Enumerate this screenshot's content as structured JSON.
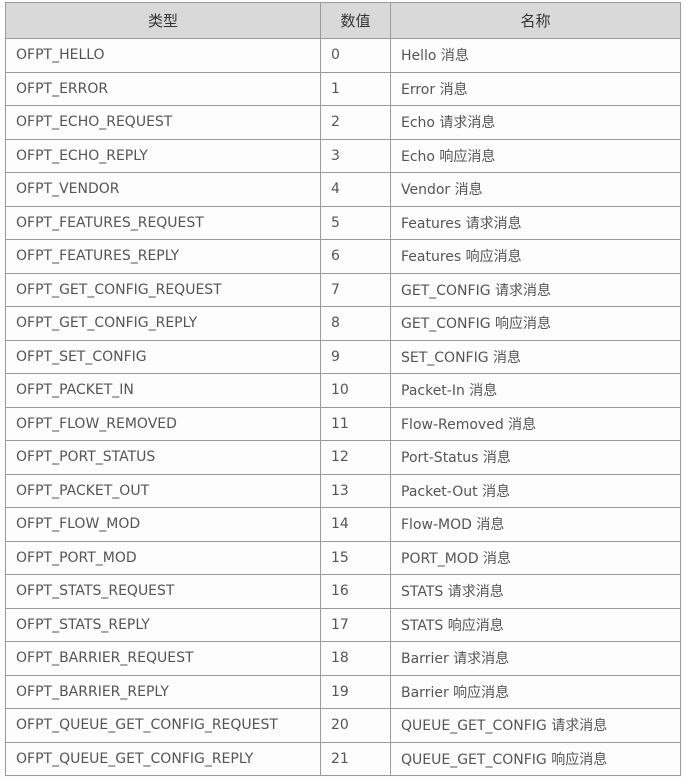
{
  "headers": [
    "类型",
    "数值",
    "名称"
  ],
  "rows": [
    [
      "OFPT_HELLO",
      "0",
      "Hello 消息"
    ],
    [
      "OFPT_ERROR",
      "1",
      "Error 消息"
    ],
    [
      "OFPT_ECHO_REQUEST",
      "2",
      "Echo 请求消息"
    ],
    [
      "OFPT_ECHO_REPLY",
      "3",
      "Echo 响应消息"
    ],
    [
      "OFPT_VENDOR",
      "4",
      "Vendor 消息"
    ],
    [
      "OFPT_FEATURES_REQUEST",
      "5",
      "Features 请求消息"
    ],
    [
      "OFPT_FEATURES_REPLY",
      "6",
      "Features 响应消息"
    ],
    [
      "OFPT_GET_CONFIG_REQUEST",
      "7",
      "GET_CONFIG 请求消息"
    ],
    [
      "OFPT_GET_CONFIG_REPLY",
      "8",
      "GET_CONFIG 响应消息"
    ],
    [
      "OFPT_SET_CONFIG",
      "9",
      "SET_CONFIG 消息"
    ],
    [
      "OFPT_PACKET_IN",
      "10",
      "Packet-In 消息"
    ],
    [
      "OFPT_FLOW_REMOVED",
      "11",
      "Flow-Removed 消息"
    ],
    [
      "OFPT_PORT_STATUS",
      "12",
      "Port-Status 消息"
    ],
    [
      "OFPT_PACKET_OUT",
      "13",
      "Packet-Out 消息"
    ],
    [
      "OFPT_FLOW_MOD",
      "14",
      "Flow-MOD 消息"
    ],
    [
      "OFPT_PORT_MOD",
      "15",
      "PORT_MOD 消息"
    ],
    [
      "OFPT_STATS_REQUEST",
      "16",
      "STATS 请求消息"
    ],
    [
      "OFPT_STATS_REPLY",
      "17",
      "STATS 响应消息"
    ],
    [
      "OFPT_BARRIER_REQUEST",
      "18",
      "Barrier 请求消息"
    ],
    [
      "OFPT_BARRIER_REPLY",
      "19",
      "Barrier 响应消息"
    ],
    [
      "OFPT_QUEUE_GET_CONFIG_REQUEST",
      "20",
      "QUEUE_GET_CONFIG 请求消息"
    ],
    [
      "OFPT_QUEUE_GET_CONFIG_REPLY",
      "21",
      "QUEUE_GET_CONFIG 响应消息"
    ]
  ],
  "colors": {
    "header_bg": "#d9d9d9",
    "border": "#9a9a9a"
  }
}
